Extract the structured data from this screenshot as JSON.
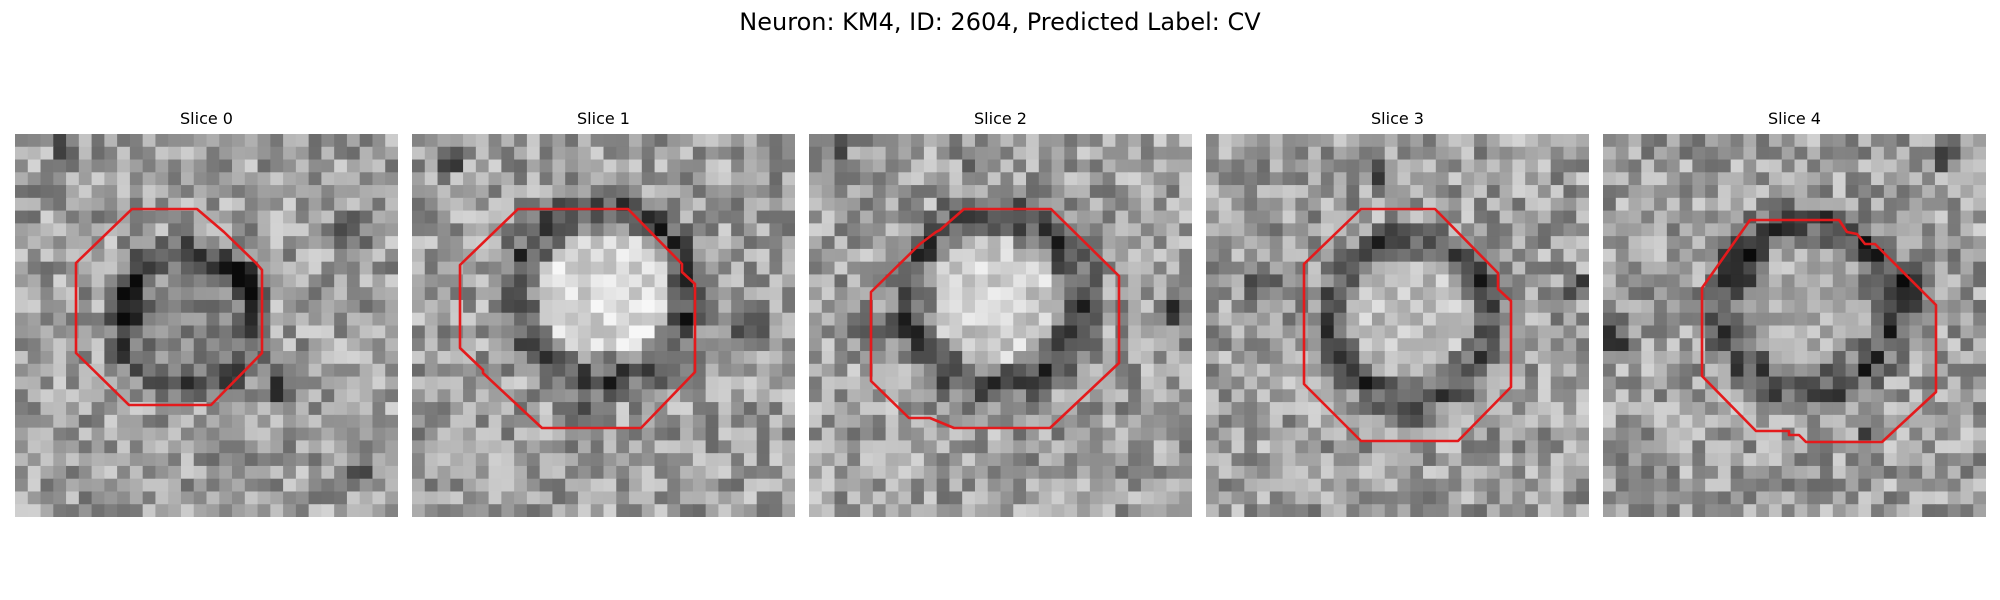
{
  "title": "Neuron: KM4, ID: 2604, Predicted Label: CV",
  "slices": [
    {
      "label": "Slice 0"
    },
    {
      "label": "Slice 1"
    },
    {
      "label": "Slice 2"
    },
    {
      "label": "Slice 3"
    },
    {
      "label": "Slice 4"
    }
  ],
  "colors": {
    "contour": "#e41a1c",
    "background": "#ffffff"
  },
  "colormap": "gray"
}
